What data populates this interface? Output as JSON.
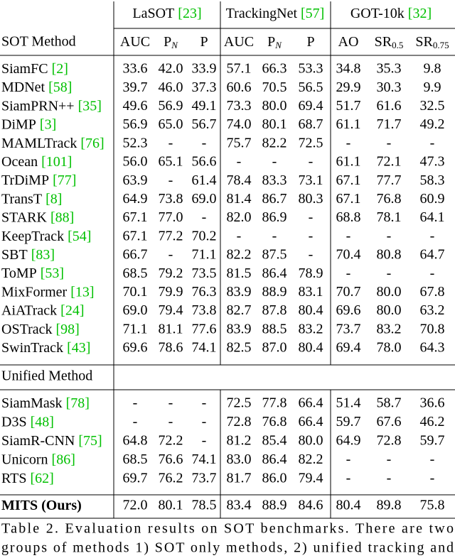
{
  "header": {
    "first_column": "SOT Method",
    "groups": [
      {
        "name": "LaSOT",
        "ref": "[23]"
      },
      {
        "name": "TrackingNet",
        "ref": "[57]"
      },
      {
        "name": "GOT-10k",
        "ref": "[32]"
      }
    ],
    "columns": [
      {
        "text": "AUC"
      },
      {
        "text": "P",
        "sub": "N"
      },
      {
        "text": "P"
      },
      {
        "text": "AUC"
      },
      {
        "text": "P",
        "sub": "N"
      },
      {
        "text": "P"
      },
      {
        "text": "AO"
      },
      {
        "text": "SR",
        "sub": "0.5"
      },
      {
        "text": "SR",
        "sub": "0.75"
      }
    ]
  },
  "ref_color": "#00c000",
  "sections": [
    {
      "rows": [
        {
          "method": "SiamFC",
          "ref": "[2]",
          "values": [
            "33.6",
            "42.0",
            "33.9",
            "57.1",
            "66.3",
            "53.3",
            "34.8",
            "35.3",
            "9.8"
          ]
        },
        {
          "method": "MDNet",
          "ref": "[58]",
          "values": [
            "39.7",
            "46.0",
            "37.3",
            "60.6",
            "70.5",
            "56.5",
            "29.9",
            "30.3",
            "9.9"
          ]
        },
        {
          "method": "SiamPRN++",
          "ref": "[35]",
          "values": [
            "49.6",
            "56.9",
            "49.1",
            "73.3",
            "80.0",
            "69.4",
            "51.7",
            "61.6",
            "32.5"
          ]
        },
        {
          "method": "DiMP",
          "ref": "[3]",
          "values": [
            "56.9",
            "65.0",
            "56.7",
            "74.0",
            "80.1",
            "68.7",
            "61.1",
            "71.7",
            "49.2"
          ]
        },
        {
          "method": "MAMLTrack",
          "ref": "[76]",
          "values": [
            "52.3",
            "-",
            "-",
            "75.7",
            "82.2",
            "72.5",
            "-",
            "-",
            "-"
          ]
        },
        {
          "method": "Ocean",
          "ref": "[101]",
          "values": [
            "56.0",
            "65.1",
            "56.6",
            "-",
            "-",
            "-",
            "61.1",
            "72.1",
            "47.3"
          ]
        },
        {
          "method": "TrDiMP",
          "ref": "[77]",
          "values": [
            "63.9",
            "-",
            "61.4",
            "78.4",
            "83.3",
            "73.1",
            "67.1",
            "77.7",
            "58.3"
          ]
        },
        {
          "method": "TransT",
          "ref": "[8]",
          "values": [
            "64.9",
            "73.8",
            "69.0",
            "81.4",
            "86.7",
            "80.3",
            "67.1",
            "76.8",
            "60.9"
          ]
        },
        {
          "method": "STARK",
          "ref": "[88]",
          "values": [
            "67.1",
            "77.0",
            "-",
            "82.0",
            "86.9",
            "-",
            "68.8",
            "78.1",
            "64.1"
          ]
        },
        {
          "method": "KeepTrack",
          "ref": "[54]",
          "values": [
            "67.1",
            "77.2",
            "70.2",
            "-",
            "-",
            "-",
            "-",
            "-",
            "-"
          ]
        },
        {
          "method": "SBT",
          "ref": "[83]",
          "values": [
            "66.7",
            "-",
            "71.1",
            "82.2",
            "87.5",
            "-",
            "70.4",
            "80.8",
            "64.7"
          ]
        },
        {
          "method": "ToMP",
          "ref": "[53]",
          "values": [
            "68.5",
            "79.2",
            "73.5",
            "81.5",
            "86.4",
            "78.9",
            "-",
            "-",
            "-"
          ]
        },
        {
          "method": "MixFormer",
          "ref": "[13]",
          "values": [
            "70.1",
            "79.9",
            "76.3",
            {
              "text": "83.9",
              "color": "#0000ff"
            },
            {
              "text": "88.9",
              "color": "#0000ff"
            },
            "83.1",
            "70.7",
            "80.0",
            "67.8"
          ]
        },
        {
          "method": "AiATrack",
          "ref": "[24]",
          "values": [
            "69.0",
            "79.4",
            "73.8",
            "82.7",
            "87.8",
            "80.4",
            "69.6",
            "80.0",
            "63.2"
          ]
        },
        {
          "method": "OSTrack",
          "ref": "[98]",
          "values": [
            {
              "text": "71.1",
              "color": "#0000ff"
            },
            {
              "text": "81.1",
              "color": "#ff0000"
            },
            {
              "text": "77.6",
              "color": "#0000ff"
            },
            {
              "text": "83.9",
              "color": "#ff0000"
            },
            "88.5",
            {
              "text": "83.2",
              "color": "#0000ff"
            },
            {
              "text": "73.7",
              "color": "#0000ff"
            },
            {
              "text": "83.2",
              "color": "#0000ff"
            },
            {
              "text": "70.8",
              "color": "#0000ff"
            }
          ]
        },
        {
          "method": "SwinTrack",
          "ref": "[43]",
          "values": [
            "69.6",
            "78.6",
            "74.1",
            "82.5",
            "87.0",
            "80.4",
            "69.4",
            "78.0",
            "64.3"
          ]
        }
      ]
    },
    {
      "title": "Unified Method",
      "rows": [
        {
          "method": "SiamMask",
          "ref": "[78]",
          "values": [
            "-",
            "-",
            "-",
            "72.5",
            "77.8",
            "66.4",
            "51.4",
            "58.7",
            "36.6"
          ]
        },
        {
          "method": "D3S",
          "ref": "[48]",
          "values": [
            "-",
            "-",
            "-",
            "72.8",
            "76.8",
            "66.4",
            "59.7",
            "67.6",
            "46.2"
          ]
        },
        {
          "method": "SiamR-CNN",
          "ref": "[75]",
          "values": [
            "64.8",
            "72.2",
            "-",
            "81.2",
            "85.4",
            "80.0",
            "64.9",
            "72.8",
            "59.7"
          ]
        },
        {
          "method": "Unicorn",
          "ref": "[86]",
          "values": [
            "68.5",
            "76.6",
            "74.1",
            "83.0",
            "86.4",
            "82.2",
            "-",
            "-",
            "-"
          ]
        },
        {
          "method": "RTS",
          "ref": "[62]",
          "values": [
            "69.7",
            "76.2",
            "73.7",
            "81.7",
            "86.0",
            "79.4",
            "-",
            "-",
            "-"
          ]
        }
      ]
    },
    {
      "rows": [
        {
          "method": "MITS (Ours)",
          "bold": true,
          "values": [
            {
              "text": "72.0",
              "color": "#ff0000"
            },
            {
              "text": "80.1",
              "color": "#0000ff"
            },
            {
              "text": "78.5",
              "color": "#ff0000"
            },
            "83.4",
            {
              "text": "88.9",
              "color": "#ff0000"
            },
            {
              "text": "84.6",
              "color": "#ff0000"
            },
            {
              "text": "80.4",
              "color": "#ff0000"
            },
            {
              "text": "89.8",
              "color": "#ff0000"
            },
            {
              "text": "75.8",
              "color": "#ff0000"
            }
          ]
        }
      ]
    }
  ],
  "caption": [
    "Table 2. Evaluation results on SOT benchmarks. There are two",
    "groups of methods 1) SOT only methods, 2) unified tracking and"
  ]
}
